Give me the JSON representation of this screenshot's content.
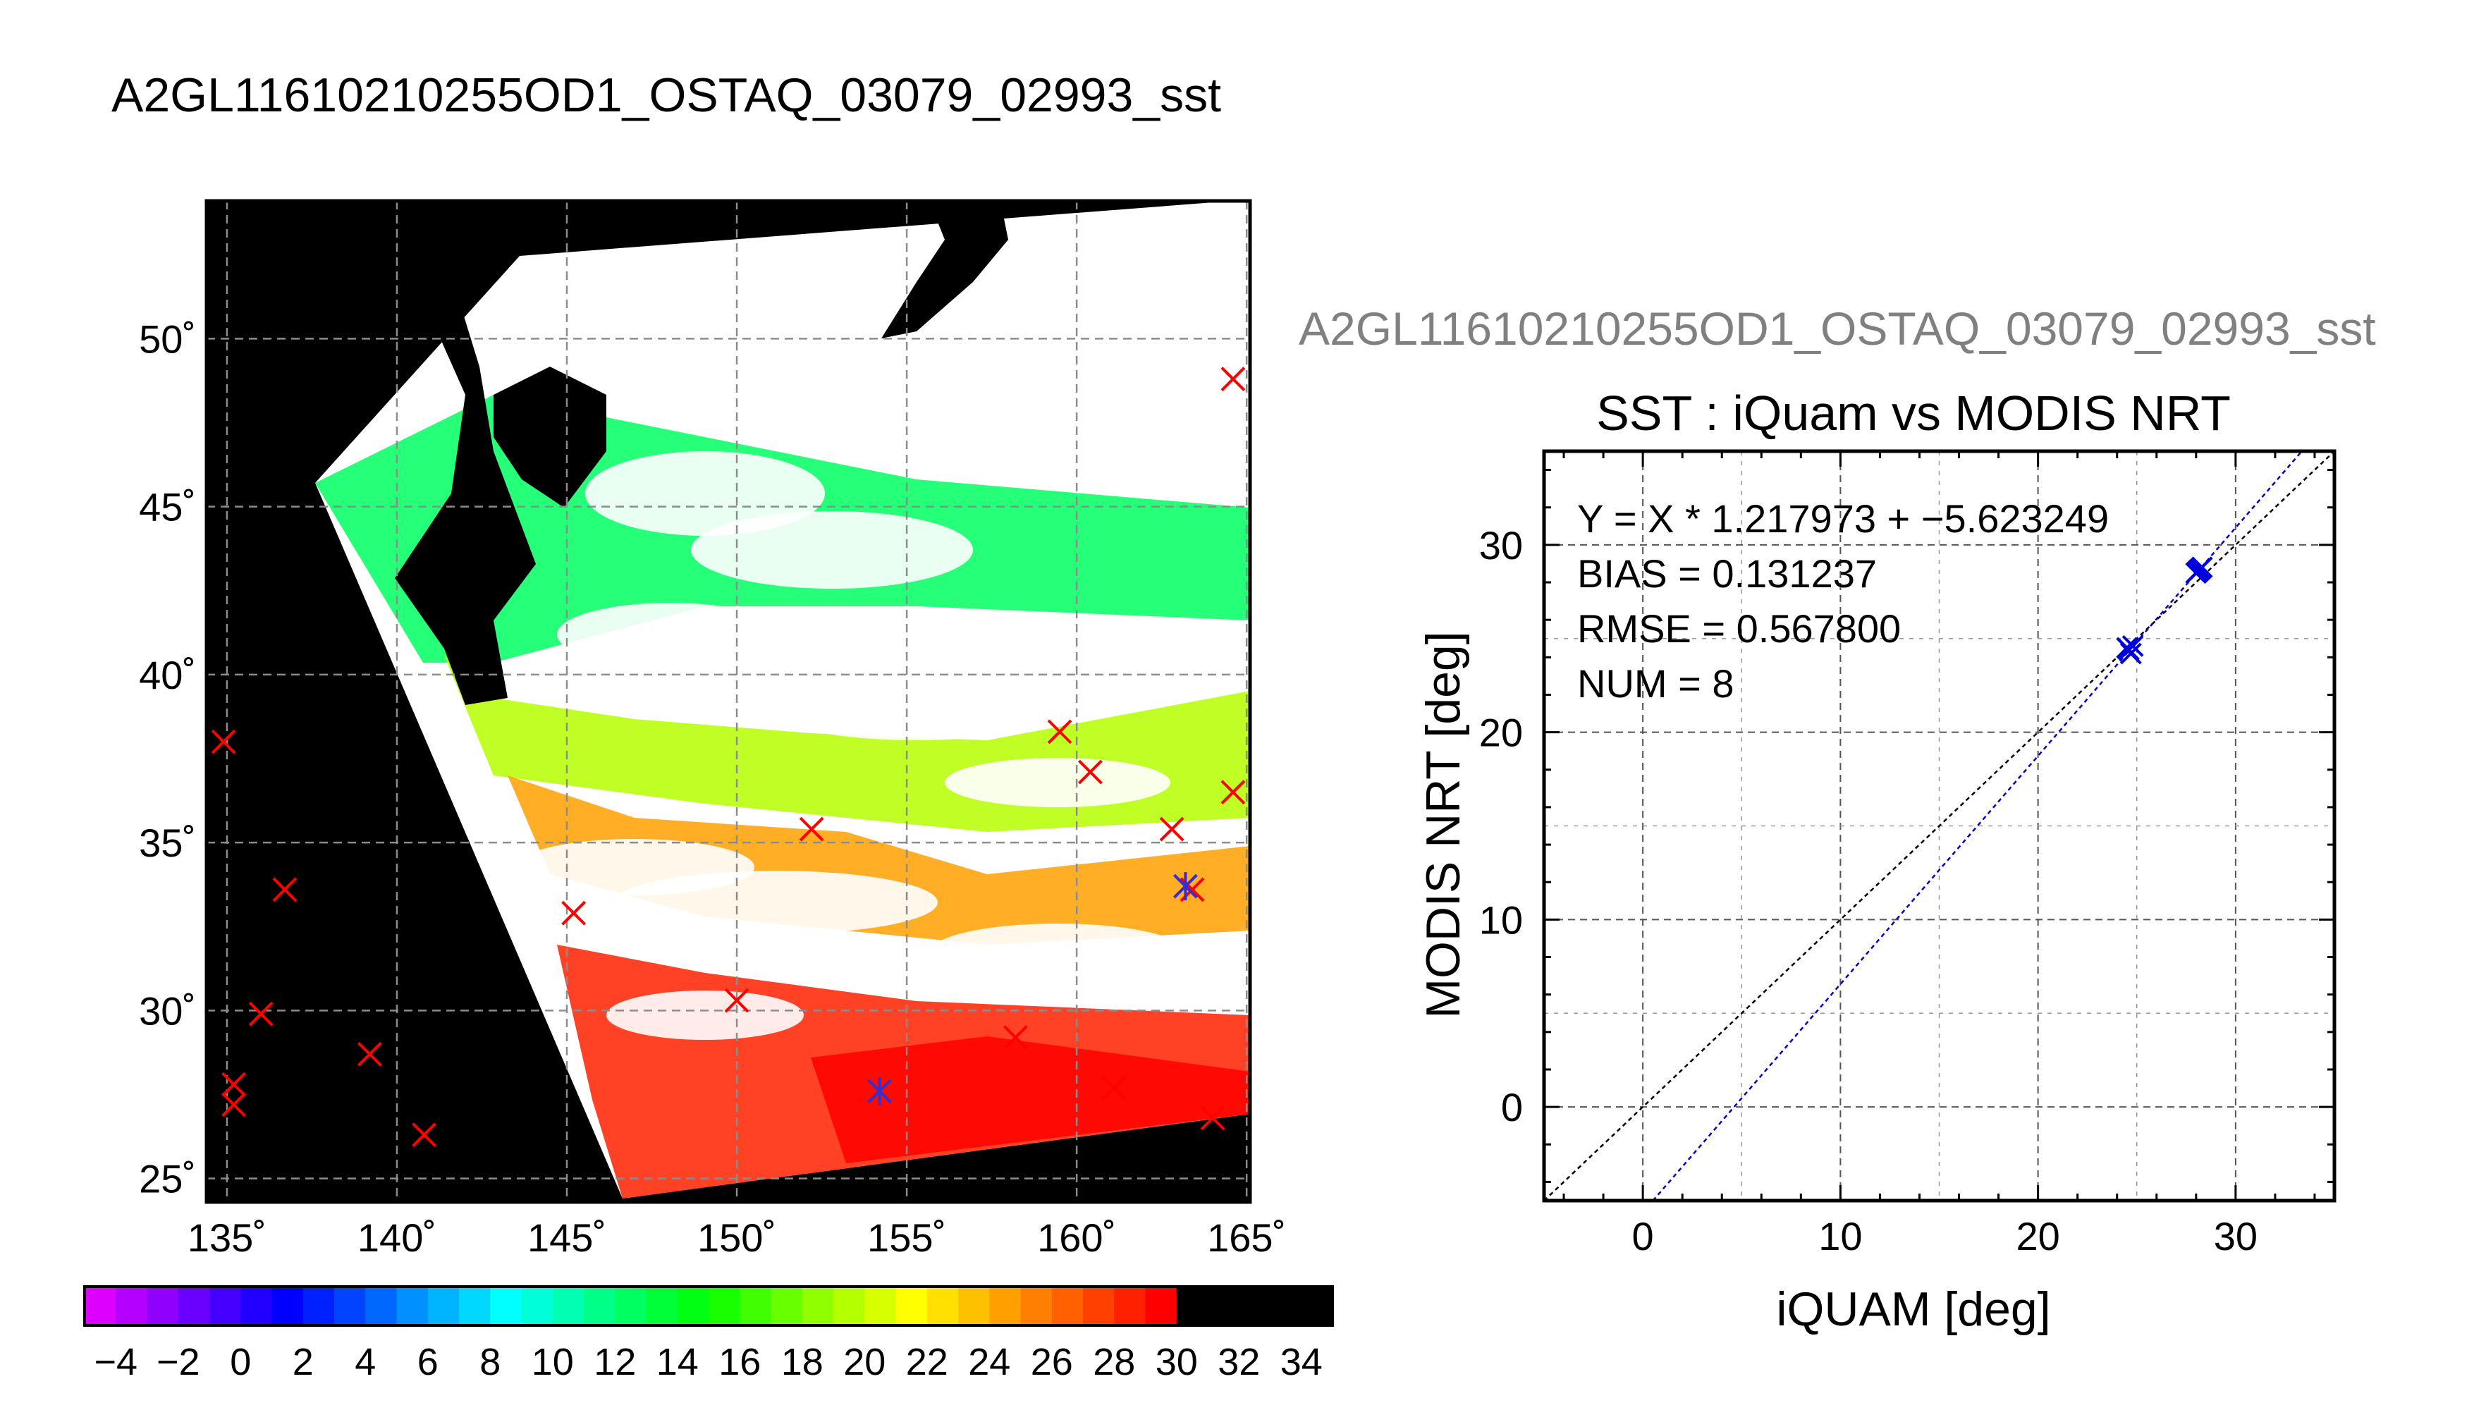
{
  "page": {
    "title": "A2GL11610210255OD1_OSTAQ_03079_02993_sst",
    "scatter_header": "A2GL11610210255OD1_OSTAQ_03079_02993_sst"
  },
  "chart_data": [
    {
      "type": "heatmap",
      "name": "sst-map",
      "x_ticks": [
        "135˚",
        "140˚",
        "145˚",
        "150˚",
        "155˚",
        "160˚",
        "165˚"
      ],
      "y_ticks": [
        "25˚",
        "30˚",
        "35˚",
        "40˚",
        "45˚",
        "50˚"
      ],
      "xlim": [
        134.4,
        165.1
      ],
      "ylim": [
        24.3,
        54.1
      ],
      "grid": true,
      "colorbar": {
        "min": -5,
        "max": 35,
        "step": 1,
        "tick_labels": [
          "−4",
          "−2",
          "0",
          "2",
          "4",
          "6",
          "8",
          "10",
          "12",
          "14",
          "16",
          "18",
          "20",
          "22",
          "24",
          "26",
          "28",
          "30",
          "32",
          "34"
        ],
        "colors": [
          "#ff00ff",
          "#dd00ff",
          "#b400ff",
          "#9000ff",
          "#6a00ff",
          "#4400ff",
          "#2200ff",
          "#0000ff",
          "#0020ff",
          "#0044ff",
          "#0068ff",
          "#0090ff",
          "#00b4ff",
          "#00d8ff",
          "#00ffff",
          "#00ffd8",
          "#00ffb0",
          "#00ff88",
          "#00ff60",
          "#00ff38",
          "#00ff10",
          "#18ff00",
          "#40ff00",
          "#68ff00",
          "#90ff00",
          "#b4ff00",
          "#d8ff00",
          "#ffff00",
          "#ffe000",
          "#ffc000",
          "#ffa000",
          "#ff8000",
          "#ff6000",
          "#ff4000",
          "#ff2000",
          "#ff0000"
        ]
      },
      "markers_red": [
        [
          134.9,
          38.0
        ],
        [
          135.2,
          27.8
        ],
        [
          135.2,
          27.2
        ],
        [
          136.0,
          29.9
        ],
        [
          136.7,
          33.6
        ],
        [
          139.2,
          28.7
        ],
        [
          140.8,
          26.3
        ],
        [
          145.2,
          32.9
        ],
        [
          150.0,
          30.3
        ],
        [
          152.2,
          35.4
        ],
        [
          158.2,
          29.2
        ],
        [
          159.5,
          38.3
        ],
        [
          160.4,
          37.1
        ],
        [
          161.1,
          27.7
        ],
        [
          162.8,
          35.4
        ],
        [
          163.4,
          33.6
        ],
        [
          164.0,
          26.8
        ],
        [
          164.6,
          48.8
        ],
        [
          164.6,
          36.5
        ]
      ],
      "markers_blue": [
        [
          154.2,
          27.6
        ],
        [
          163.2,
          33.7
        ]
      ]
    },
    {
      "type": "scatter",
      "name": "iquam-vs-modis",
      "title": "SST : iQuam vs MODIS NRT",
      "xlabel": "iQUAM [deg]",
      "ylabel": "MODIS NRT [deg]",
      "xlim": [
        -5,
        35
      ],
      "ylim": [
        -5,
        35
      ],
      "x_ticks": [
        0,
        10,
        20,
        30
      ],
      "y_ticks": [
        0,
        10,
        20,
        30
      ],
      "grid": true,
      "annotations": [
        "Y = X * 1.217973 + −5.623249",
        "BIAS = 0.131237",
        "RMSE = 0.567800",
        "NUM = 8"
      ],
      "fit": {
        "slope": 1.217973,
        "intercept": -5.623249
      },
      "points": [
        [
          24.6,
          24.4
        ],
        [
          24.7,
          24.2
        ],
        [
          24.5,
          24.5
        ],
        [
          24.8,
          24.6
        ],
        [
          28.1,
          28.6
        ],
        [
          28.3,
          28.8
        ],
        [
          28.0,
          28.5
        ],
        [
          28.2,
          28.7
        ]
      ]
    }
  ]
}
